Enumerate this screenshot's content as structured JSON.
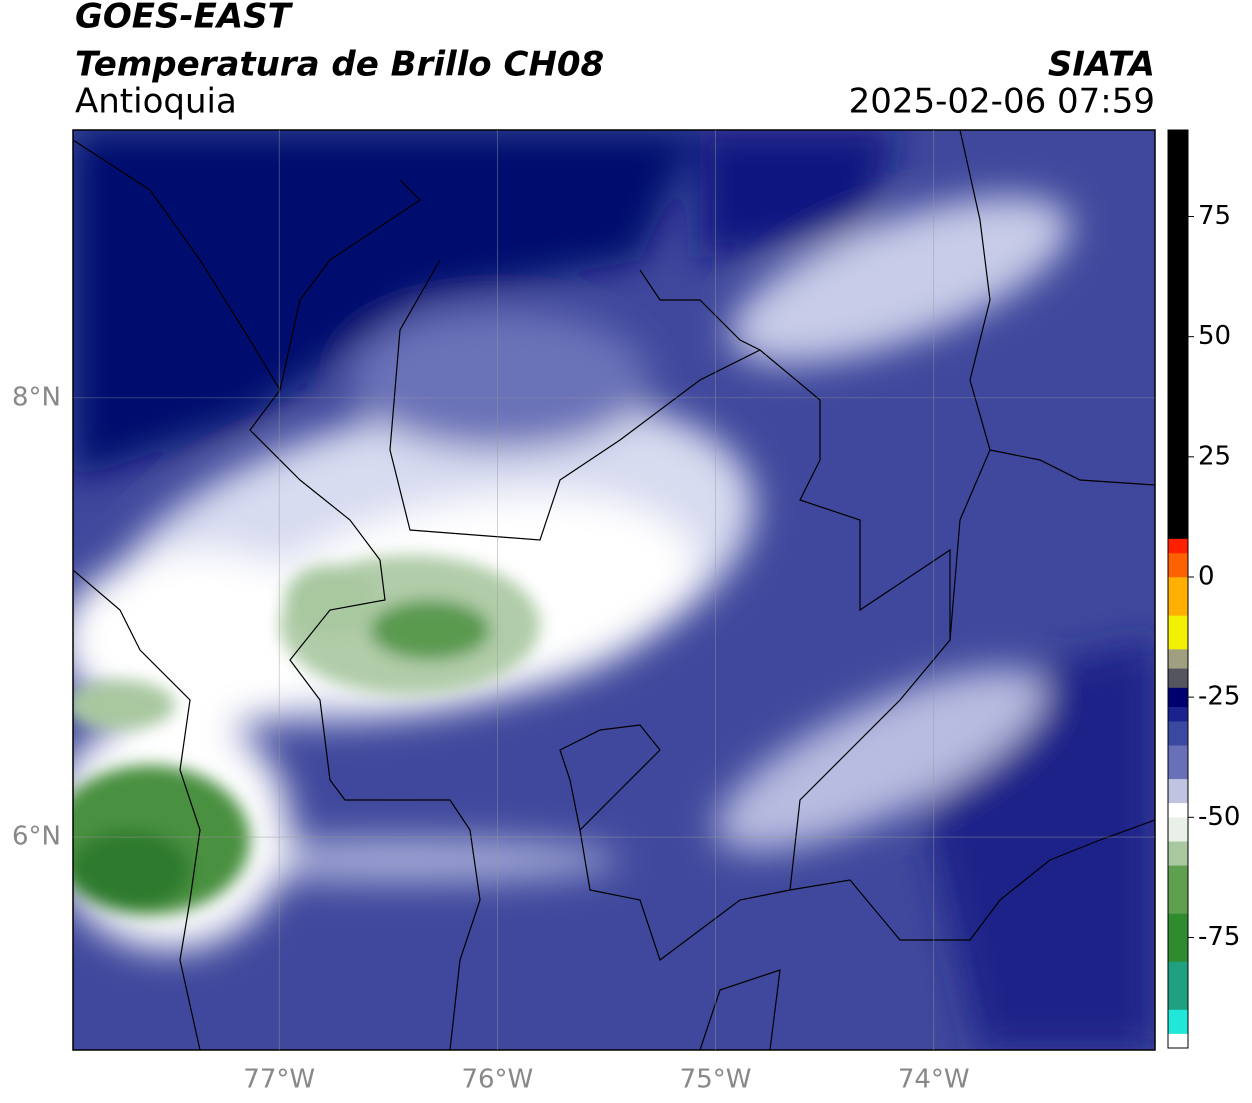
{
  "header": {
    "title": "GOES-EAST",
    "subtitle": "Temperatura de Brillo CH08",
    "region": "Antioquia",
    "source": "SIATA",
    "datetime": "2025-02-06 07:59"
  },
  "map": {
    "xlim": [
      -77.945,
      -72.986
    ],
    "ylim": [
      5.03,
      9.22
    ],
    "xticks": [
      {
        "value": -77,
        "label": "77°W"
      },
      {
        "value": -76,
        "label": "76°W"
      },
      {
        "value": -75,
        "label": "75°W"
      },
      {
        "value": -74,
        "label": "74°W"
      }
    ],
    "yticks": [
      {
        "value": 6,
        "label": "6°N"
      },
      {
        "value": 8,
        "label": "8°N"
      }
    ],
    "grid": true
  },
  "colorbar": {
    "ylim": [
      -98,
      93
    ],
    "yticks": [
      -75,
      -50,
      -25,
      0,
      25,
      50,
      75
    ],
    "colors": [
      {
        "value": -98,
        "color": "#ffffff"
      },
      {
        "value": -95,
        "color": "#20e8d8"
      },
      {
        "value": -90,
        "color": "#1fa080"
      },
      {
        "value": -80,
        "color": "#2e8b2e"
      },
      {
        "value": -70,
        "color": "#5fa050"
      },
      {
        "value": -60,
        "color": "#a8c8a0"
      },
      {
        "value": -55,
        "color": "#e8f0e8"
      },
      {
        "value": -50,
        "color": "#ffffff"
      },
      {
        "value": -47,
        "color": "#c0c4e0"
      },
      {
        "value": -42,
        "color": "#6870b8"
      },
      {
        "value": -35,
        "color": "#3a48a0"
      },
      {
        "value": -30,
        "color": "#1a2290"
      },
      {
        "value": -27,
        "color": "#000070"
      },
      {
        "value": -23,
        "color": "#555560"
      },
      {
        "value": -19,
        "color": "#a0a080"
      },
      {
        "value": -15,
        "color": "#f0f000"
      },
      {
        "value": -8,
        "color": "#ffb000"
      },
      {
        "value": 0,
        "color": "#ff6000"
      },
      {
        "value": 5,
        "color": "#ff2000"
      },
      {
        "value": 8,
        "color": "#000000"
      }
    ]
  }
}
